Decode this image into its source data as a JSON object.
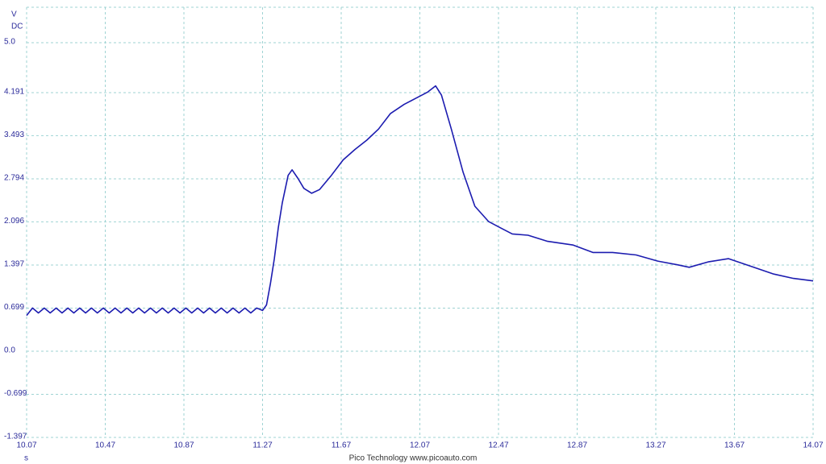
{
  "chart_data": {
    "type": "line",
    "y_unit": "V",
    "y_coupling": "DC",
    "x_unit": "s",
    "footer": "Pico Technology   www.picoauto.com",
    "color": "#1c1cb0",
    "grid": true,
    "xlim": [
      10.07,
      14.07
    ],
    "xticks": [
      10.07,
      10.47,
      10.87,
      11.27,
      11.67,
      12.07,
      12.47,
      12.87,
      13.27,
      13.67,
      14.07
    ],
    "ylim": [
      -1.397,
      5.574
    ],
    "yticks": [
      -1.397,
      -0.699,
      {
        "value": 0,
        "label": "0.0"
      },
      0.699,
      1.397,
      2.096,
      2.794,
      3.493,
      4.191,
      {
        "value": 5,
        "label": "5.0"
      }
    ],
    "x": [
      10.07,
      10.1,
      10.13,
      10.16,
      10.19,
      10.22,
      10.25,
      10.28,
      10.31,
      10.34,
      10.37,
      10.4,
      10.43,
      10.46,
      10.49,
      10.52,
      10.55,
      10.58,
      10.61,
      10.64,
      10.67,
      10.7,
      10.73,
      10.76,
      10.79,
      10.82,
      10.85,
      10.88,
      10.91,
      10.94,
      10.97,
      11.0,
      11.03,
      11.06,
      11.09,
      11.12,
      11.15,
      11.18,
      11.21,
      11.24,
      11.27,
      11.29,
      11.31,
      11.33,
      11.35,
      11.37,
      11.4,
      11.42,
      11.45,
      11.48,
      11.52,
      11.56,
      11.62,
      11.68,
      11.74,
      11.8,
      11.86,
      11.92,
      11.99,
      12.05,
      12.11,
      12.15,
      12.18,
      12.23,
      12.29,
      12.35,
      12.42,
      12.48,
      12.54,
      12.62,
      12.72,
      12.85,
      12.95,
      13.05,
      13.17,
      13.28,
      13.38,
      13.44,
      13.54,
      13.64,
      13.75,
      13.87,
      13.97,
      14.07
    ],
    "values": [
      0.58,
      0.7,
      0.62,
      0.7,
      0.62,
      0.7,
      0.62,
      0.7,
      0.62,
      0.7,
      0.62,
      0.7,
      0.62,
      0.7,
      0.62,
      0.7,
      0.62,
      0.7,
      0.62,
      0.7,
      0.62,
      0.7,
      0.62,
      0.7,
      0.62,
      0.7,
      0.62,
      0.7,
      0.62,
      0.7,
      0.62,
      0.7,
      0.62,
      0.7,
      0.62,
      0.7,
      0.62,
      0.7,
      0.62,
      0.7,
      0.66,
      0.75,
      1.1,
      1.5,
      2.0,
      2.4,
      2.85,
      2.94,
      2.8,
      2.64,
      2.56,
      2.62,
      2.85,
      3.1,
      3.27,
      3.42,
      3.6,
      3.85,
      4.0,
      4.1,
      4.2,
      4.3,
      4.15,
      3.6,
      2.9,
      2.35,
      2.1,
      2.0,
      1.9,
      1.88,
      1.78,
      1.72,
      1.6,
      1.6,
      1.56,
      1.46,
      1.4,
      1.36,
      1.45,
      1.5,
      1.38,
      1.25,
      1.18,
      1.14
    ]
  }
}
